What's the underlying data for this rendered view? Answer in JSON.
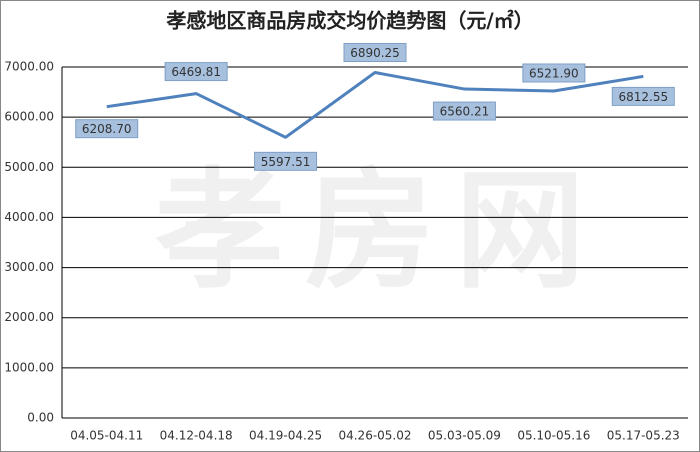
{
  "chart_data": {
    "type": "line",
    "title": "孝感地区商品房成交均价趋势图（元/㎡）",
    "watermark": "孝房网",
    "categories": [
      "04.05-04.11",
      "04.12-04.18",
      "04.19-04.25",
      "04.26-05.02",
      "05.03-05.09",
      "05.10-05.16",
      "05.17-05.23"
    ],
    "series": [
      {
        "color": "#4f81bd",
        "values": [
          6208.7,
          6469.81,
          5597.51,
          6890.25,
          6560.21,
          6521.9,
          6812.55
        ],
        "value_labels": [
          "6208.70",
          "6469.81",
          "5597.51",
          "6890.25",
          "6560.21",
          "6521.90",
          "6812.55"
        ]
      }
    ],
    "ylim": [
      0,
      7000
    ],
    "yticks": [
      {
        "value": 0,
        "label": "0.00"
      },
      {
        "value": 1000,
        "label": "1000.00"
      },
      {
        "value": 2000,
        "label": "2000.00"
      },
      {
        "value": 3000,
        "label": "3000.00"
      },
      {
        "value": 4000,
        "label": "4000.00"
      },
      {
        "value": 5000,
        "label": "5000.00"
      },
      {
        "value": 6000,
        "label": "6000.00"
      },
      {
        "value": 7000,
        "label": "7000.00"
      }
    ],
    "grid": true
  }
}
